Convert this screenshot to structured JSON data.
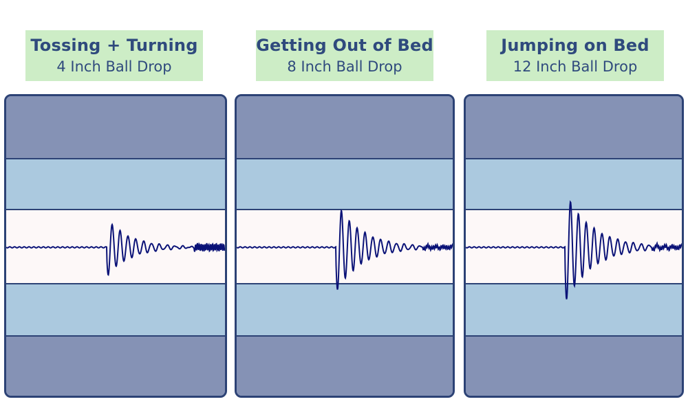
{
  "panels": [
    {
      "title": "Tossing + Turning",
      "subtitle": "4 Inch Ball Drop",
      "intensity": 1.0
    },
    {
      "title": "Getting Out of Bed",
      "subtitle": "8 Inch Ball Drop",
      "intensity": 1.55
    },
    {
      "title": "Jumping on Bed",
      "subtitle": "12 Inch Ball Drop",
      "intensity": 1.9
    }
  ],
  "colors": {
    "label_bg": "#cdedc6",
    "label_text": "#2f4a7d",
    "outer_layer": "#8592b5",
    "mid_layer": "#abc9df",
    "core_layer": "#fdf8f8",
    "border": "#2c4275",
    "wave": "#0a1277"
  }
}
